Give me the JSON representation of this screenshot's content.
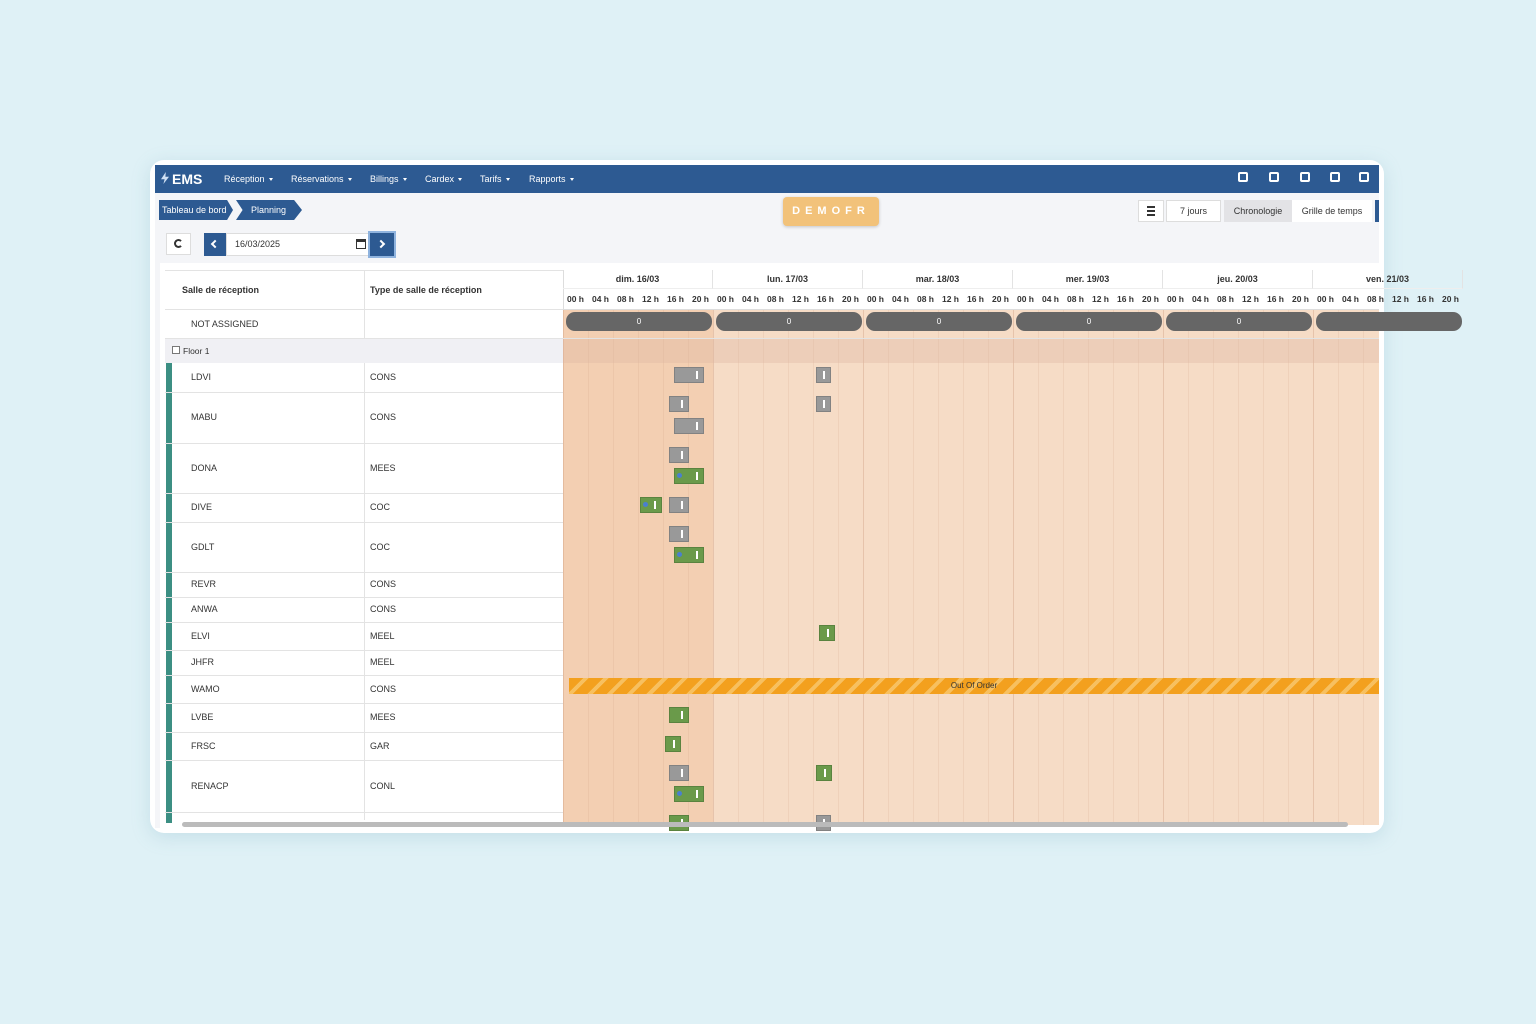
{
  "nav": {
    "brand": "EMS",
    "menu": [
      "Réception",
      "Réservations",
      "Billings",
      "Cardex",
      "Tarifs",
      "Rapports"
    ]
  },
  "breadcrumb": [
    "Tableau de bord",
    "Planning"
  ],
  "demo": "DEMOFR",
  "view": {
    "period": "7 jours",
    "tabs": [
      "Chronologie",
      "Grille de temps"
    ]
  },
  "date": "16/03/2025",
  "columns": [
    "Salle de réception",
    "Type de salle de réception"
  ],
  "days": [
    "dim. 16/03",
    "lun. 17/03",
    "mar. 18/03",
    "mer. 19/03",
    "jeu. 20/03",
    "ven. 21/03"
  ],
  "hours": [
    "00 h",
    "04 h",
    "08 h",
    "12 h",
    "16 h",
    "20 h"
  ],
  "unassigned": {
    "label": "NOT ASSIGNED",
    "counts": [
      "0",
      "0",
      "0",
      "0",
      "0"
    ]
  },
  "group": "Floor 1",
  "rooms": [
    {
      "name": "LDVI",
      "type": "CONS"
    },
    {
      "name": "MABU",
      "type": "CONS"
    },
    {
      "name": "DONA",
      "type": "MEES"
    },
    {
      "name": "DIVE",
      "type": "COC"
    },
    {
      "name": "GDLT",
      "type": "COC"
    },
    {
      "name": "REVR",
      "type": "CONS"
    },
    {
      "name": "ANWA",
      "type": "CONS"
    },
    {
      "name": "ELVI",
      "type": "MEEL"
    },
    {
      "name": "JHFR",
      "type": "MEEL"
    },
    {
      "name": "WAMO",
      "type": "CONS"
    },
    {
      "name": "LVBE",
      "type": "MEES"
    },
    {
      "name": "FRSC",
      "type": "GAR"
    },
    {
      "name": "RENACP",
      "type": "CONL"
    }
  ],
  "out_of_order": "Out Of Order"
}
